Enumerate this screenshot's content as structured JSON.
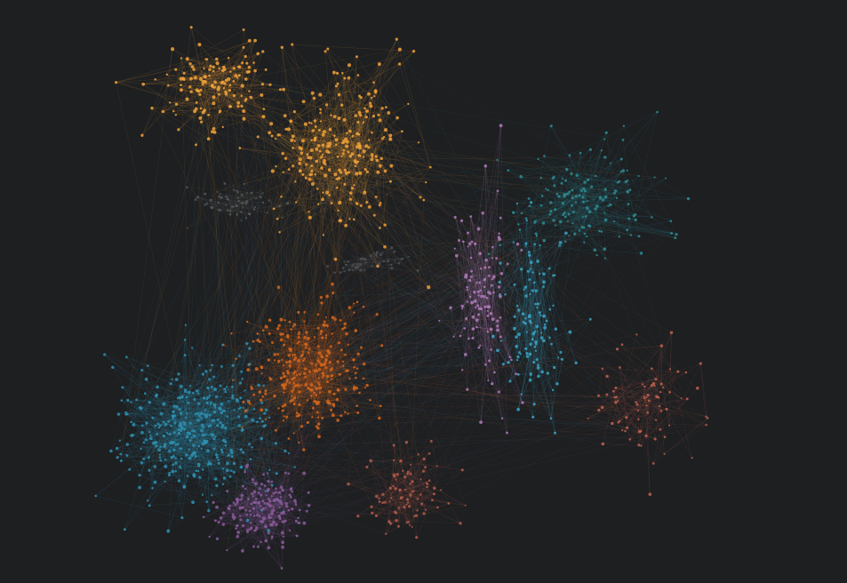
{
  "background": "#1d1f21",
  "graph": {
    "type": "force-directed-network",
    "labels": [],
    "clusters": [
      {
        "id": "orange-north-west",
        "color": "#f2a23a",
        "density": "high"
      },
      {
        "id": "orange-north-core",
        "color": "#f0a03a",
        "density": "very-high"
      },
      {
        "id": "gray-west",
        "color": "#55575a",
        "density": "low"
      },
      {
        "id": "gray-centre",
        "color": "#4e5054",
        "density": "low"
      },
      {
        "id": "teal-east",
        "color": "#2e8c95",
        "density": "medium"
      },
      {
        "id": "purple-east",
        "color": "#b07ab8",
        "density": "medium"
      },
      {
        "id": "blue-east",
        "color": "#3aa3c4",
        "density": "high"
      },
      {
        "id": "salmon-south-east",
        "color": "#c0614f",
        "density": "medium"
      },
      {
        "id": "burnt-orange-centre",
        "color": "#d4661c",
        "density": "very-high"
      },
      {
        "id": "blue-south-west",
        "color": "#2f8fb0",
        "density": "very-high"
      },
      {
        "id": "violet-south",
        "color": "#8a5a9a",
        "density": "high"
      },
      {
        "id": "salmon-south",
        "color": "#b35a4a",
        "density": "medium"
      }
    ]
  }
}
